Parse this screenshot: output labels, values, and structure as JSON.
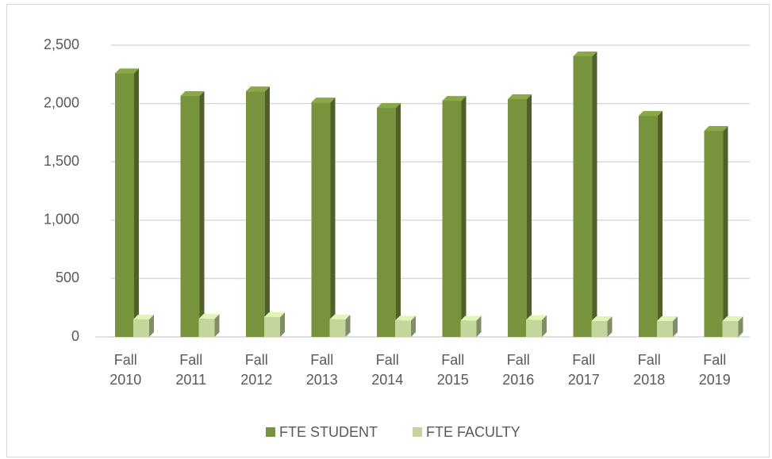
{
  "chart_data": {
    "type": "bar3d",
    "categories": [
      "Fall 2010",
      "Fall 2011",
      "Fall 2012",
      "Fall 2013",
      "Fall 2014",
      "Fall 2015",
      "Fall 2016",
      "Fall 2017",
      "Fall 2018",
      "Fall 2019"
    ],
    "series": [
      {
        "name": "FTE STUDENT",
        "color": "#77933c",
        "values": [
          2260,
          2065,
          2105,
          2010,
          1963,
          2024,
          2038,
          2405,
          1895,
          1766
        ]
      },
      {
        "name": "FTE FACULTY",
        "color": "#c3d69b",
        "values": [
          150,
          155,
          170,
          150,
          140,
          140,
          145,
          136,
          136,
          136
        ]
      }
    ],
    "ylim": [
      0,
      2500
    ],
    "yticks": [
      0,
      500,
      {
        "value": 1000,
        "label": "1,000"
      },
      {
        "value": 1500,
        "label": "1,500"
      },
      {
        "value": 2000,
        "label": "2,000"
      },
      {
        "value": 2500,
        "label": "2,500"
      }
    ],
    "grid": true,
    "legend": "bottom"
  }
}
